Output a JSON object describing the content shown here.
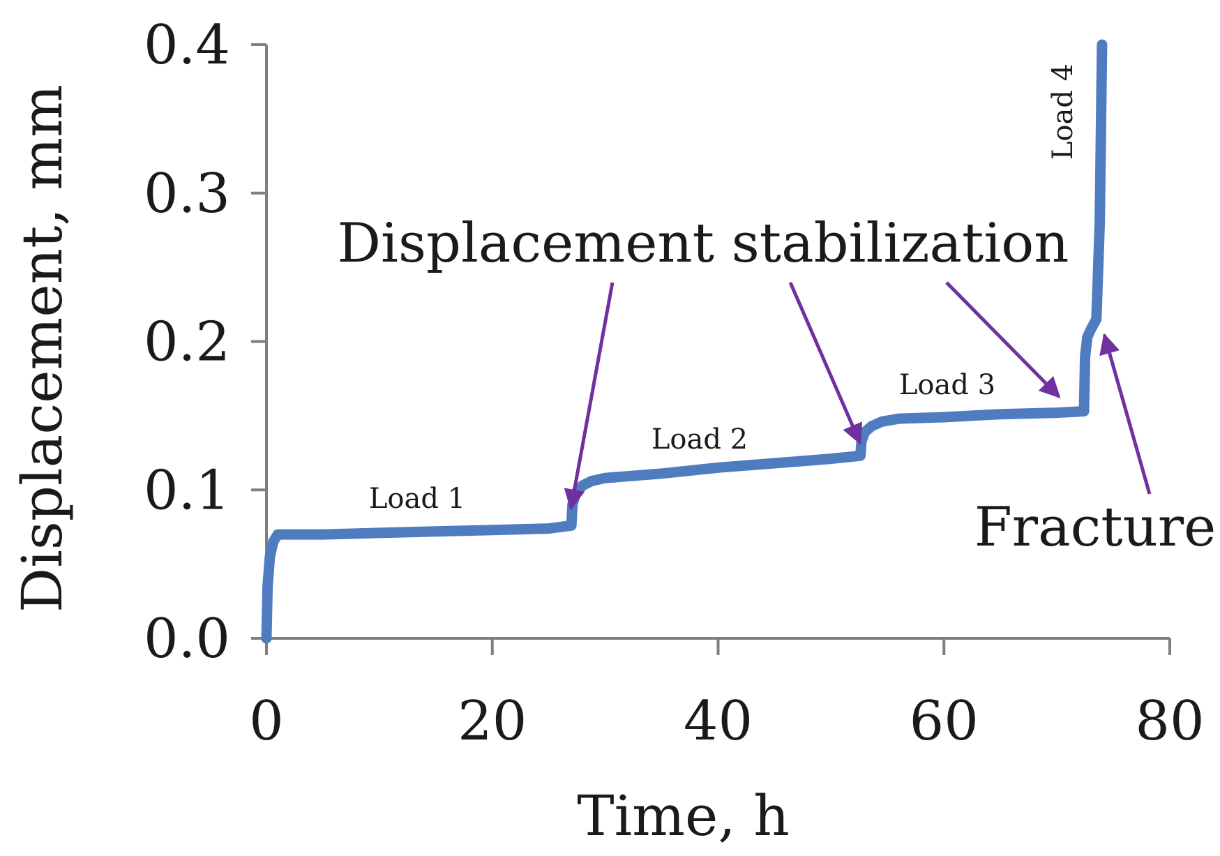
{
  "chart_data": {
    "type": "line",
    "xlabel": "Time, h",
    "ylabel": "Displacement, mm",
    "xlim": [
      0,
      80
    ],
    "ylim": [
      0,
      0.4
    ],
    "xticks": [
      0,
      20,
      40,
      60,
      80
    ],
    "xtick_labels": [
      "0",
      "20",
      "40",
      "60",
      "80"
    ],
    "yticks": [
      0,
      0.1,
      0.2,
      0.3,
      0.4
    ],
    "ytick_labels": [
      "0.0",
      "0.1",
      "0.2",
      "0.3",
      "0.4"
    ],
    "grid": false,
    "legend": "none",
    "series": [
      {
        "color": "#4f7cbf",
        "x": [
          0,
          0.1,
          0.3,
          0.6,
          1.0,
          5,
          10,
          15,
          20,
          25,
          27.0,
          27.1,
          27.4,
          28.0,
          28.8,
          30,
          35,
          40,
          45,
          50,
          52.6,
          52.7,
          53.0,
          53.6,
          54.5,
          56,
          60,
          65,
          70,
          72.4,
          72.5,
          72.7,
          73.0,
          73.5,
          73.8,
          74.0
        ],
        "y": [
          0,
          0.035,
          0.055,
          0.065,
          0.07,
          0.07,
          0.071,
          0.072,
          0.073,
          0.074,
          0.076,
          0.09,
          0.098,
          0.103,
          0.106,
          0.108,
          0.111,
          0.115,
          0.118,
          0.121,
          0.123,
          0.133,
          0.139,
          0.143,
          0.146,
          0.148,
          0.149,
          0.151,
          0.152,
          0.153,
          0.19,
          0.203,
          0.208,
          0.215,
          0.28,
          0.4
        ]
      }
    ],
    "annotations": {
      "stabilization": "Displacement stabilization",
      "fracture": "Fracture",
      "load1": "Load 1",
      "load2": "Load 2",
      "load3": "Load 3",
      "load4": "Load 4"
    },
    "arrow_color": "#7030a0"
  }
}
